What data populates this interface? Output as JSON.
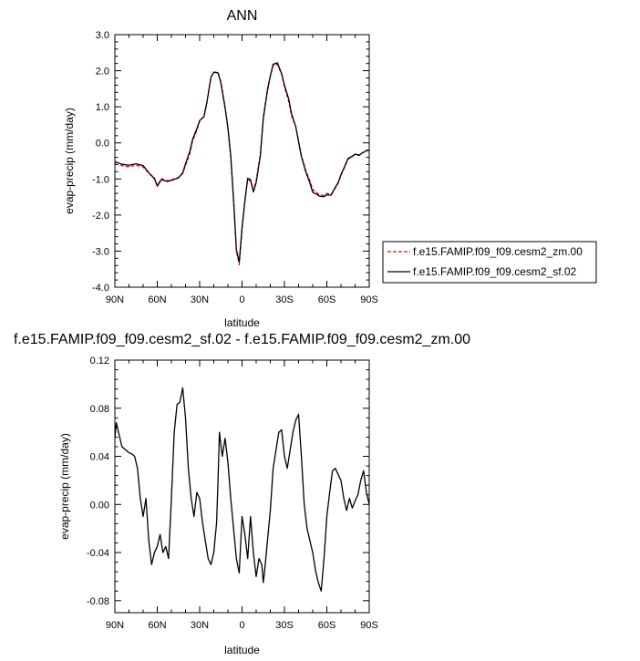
{
  "chart_data": [
    {
      "type": "line",
      "title": "ANN",
      "xlabel": "latitude",
      "ylabel": "evap-precip (mm/day)",
      "xlim": [
        90,
        -90
      ],
      "ylim": [
        -4.0,
        3.0
      ],
      "x_ticks": [
        90,
        60,
        30,
        0,
        -30,
        -60,
        -90
      ],
      "x_tick_labels": [
        "90N",
        "60N",
        "30N",
        "0",
        "30S",
        "60S",
        "90S"
      ],
      "y_ticks": [
        3.0,
        2.0,
        1.0,
        0.0,
        -1.0,
        -2.0,
        -3.0,
        -4.0
      ],
      "y_tick_labels": [
        "3.0",
        "2.0",
        "1.0",
        "0.0",
        "-1.0",
        "-2.0",
        "-3.0",
        "-4.0"
      ],
      "grid": false,
      "legend_position": "right",
      "series": [
        {
          "name": "f.e15.FAMIP.f09_f09.cesm2_zm.00",
          "color": "#ff0000",
          "dash": "dashed",
          "x": [
            90,
            85,
            80,
            75,
            70,
            65,
            62,
            60,
            57,
            53,
            50,
            45,
            42,
            40,
            37,
            35,
            32,
            30,
            27,
            25,
            22,
            20,
            17,
            15,
            12,
            10,
            8,
            6,
            4,
            2,
            0,
            -2,
            -4,
            -6,
            -8,
            -10,
            -13,
            -15,
            -18,
            -20,
            -22,
            -25,
            -28,
            -30,
            -33,
            -35,
            -38,
            -40,
            -42,
            -45,
            -48,
            -50,
            -53,
            -55,
            -58,
            -60,
            -63,
            -65,
            -68,
            -70,
            -72,
            -75,
            -78,
            -80,
            -83,
            -85,
            -88,
            -90
          ],
          "y": [
            -0.58,
            -0.63,
            -0.66,
            -0.62,
            -0.67,
            -0.88,
            -0.97,
            -1.18,
            -0.99,
            -1.05,
            -1.02,
            -0.96,
            -0.85,
            -0.62,
            -0.3,
            0.05,
            0.35,
            0.6,
            0.72,
            1.1,
            1.82,
            1.96,
            1.95,
            1.7,
            1.0,
            0.4,
            -0.4,
            -1.6,
            -3.0,
            -3.38,
            -2.4,
            -1.6,
            -1.02,
            -1.06,
            -1.32,
            -1.05,
            -0.3,
            0.7,
            1.5,
            1.85,
            2.15,
            2.18,
            1.9,
            1.55,
            1.15,
            0.75,
            0.45,
            0.05,
            -0.35,
            -0.75,
            -1.05,
            -1.3,
            -1.38,
            -1.45,
            -1.45,
            -1.4,
            -1.42,
            -1.32,
            -1.12,
            -0.9,
            -0.72,
            -0.45,
            -0.38,
            -0.32,
            -0.35,
            -0.28,
            -0.22,
            -0.2
          ]
        },
        {
          "name": "f.e15.FAMIP.f09_f09.cesm2_sf.02",
          "color": "#000000",
          "dash": "solid",
          "x": [
            90,
            85,
            80,
            75,
            70,
            65,
            62,
            60,
            57,
            53,
            50,
            45,
            42,
            40,
            37,
            35,
            32,
            30,
            27,
            25,
            22,
            20,
            17,
            15,
            12,
            10,
            8,
            6,
            4,
            2,
            0,
            -2,
            -4,
            -6,
            -8,
            -10,
            -13,
            -15,
            -18,
            -20,
            -22,
            -25,
            -28,
            -30,
            -33,
            -35,
            -38,
            -40,
            -42,
            -45,
            -48,
            -50,
            -53,
            -55,
            -58,
            -60,
            -63,
            -65,
            -68,
            -70,
            -72,
            -75,
            -78,
            -80,
            -83,
            -85,
            -88,
            -90
          ],
          "y": [
            -0.52,
            -0.59,
            -0.62,
            -0.58,
            -0.63,
            -0.87,
            -0.99,
            -1.2,
            -1.02,
            -1.07,
            -1.04,
            -0.97,
            -0.83,
            -0.58,
            -0.24,
            0.1,
            0.39,
            0.62,
            0.73,
            1.1,
            1.82,
            1.96,
            1.94,
            1.67,
            0.97,
            0.42,
            -0.35,
            -1.58,
            -2.96,
            -3.3,
            -2.35,
            -1.61,
            -0.98,
            -1.02,
            -1.36,
            -1.1,
            -0.34,
            0.66,
            1.46,
            1.85,
            2.18,
            2.22,
            1.92,
            1.6,
            1.22,
            0.81,
            0.45,
            0.03,
            -0.38,
            -0.79,
            -1.11,
            -1.37,
            -1.43,
            -1.48,
            -1.49,
            -1.44,
            -1.45,
            -1.3,
            -1.1,
            -0.88,
            -0.71,
            -0.43,
            -0.37,
            -0.31,
            -0.34,
            -0.28,
            -0.22,
            -0.2
          ]
        }
      ]
    },
    {
      "type": "line",
      "title": "f.e15.FAMIP.f09_f09.cesm2_sf.02 - f.e15.FAMIP.f09_f09.cesm2_zm.00",
      "xlabel": "latitude",
      "ylabel": "evap-precip (mm/day)",
      "xlim": [
        90,
        -90
      ],
      "ylim": [
        -0.09,
        0.12
      ],
      "x_ticks": [
        90,
        60,
        30,
        0,
        -30,
        -60,
        -90
      ],
      "x_tick_labels": [
        "90N",
        "60N",
        "30N",
        "0",
        "30S",
        "60S",
        "90S"
      ],
      "y_ticks": [
        0.12,
        0.08,
        0.04,
        0.0,
        -0.04,
        -0.08
      ],
      "y_tick_labels": [
        "0.12",
        "0.08",
        "0.04",
        "0.00",
        "-0.04",
        "-0.08"
      ],
      "grid": false,
      "series": [
        {
          "color": "#000000",
          "dash": "solid",
          "x": [
            90,
            89,
            87,
            85,
            82,
            80,
            78,
            76,
            74,
            72,
            70,
            68,
            66,
            64,
            62,
            60,
            58,
            56,
            54,
            52,
            50,
            48,
            46,
            44,
            42,
            40,
            38,
            36,
            34,
            32,
            30,
            28,
            26,
            24,
            22,
            20,
            18,
            17,
            16,
            14,
            12,
            10,
            8,
            6,
            4,
            2,
            0,
            -2,
            -4,
            -6,
            -8,
            -10,
            -12,
            -14,
            -15,
            -16,
            -18,
            -20,
            -22,
            -24,
            -26,
            -28,
            -30,
            -32,
            -34,
            -36,
            -38,
            -40,
            -42,
            -44,
            -46,
            -48,
            -50,
            -52,
            -54,
            -56,
            -58,
            -60,
            -62,
            -64,
            -66,
            -68,
            -70,
            -72,
            -74,
            -76,
            -78,
            -80,
            -82,
            -84,
            -86,
            -88,
            -90
          ],
          "y": [
            0.055,
            0.068,
            0.058,
            0.048,
            0.045,
            0.043,
            0.042,
            0.04,
            0.03,
            0.005,
            -0.01,
            0.005,
            -0.03,
            -0.05,
            -0.04,
            -0.035,
            -0.025,
            -0.04,
            -0.035,
            -0.045,
            0.005,
            0.06,
            0.083,
            0.085,
            0.097,
            0.072,
            0.03,
            0.005,
            -0.01,
            0.01,
            0.005,
            -0.015,
            -0.03,
            -0.045,
            -0.05,
            -0.04,
            -0.015,
            0.02,
            0.06,
            0.04,
            0.055,
            0.035,
            0.005,
            -0.02,
            -0.045,
            -0.057,
            -0.01,
            -0.025,
            -0.045,
            -0.01,
            -0.04,
            -0.06,
            -0.045,
            -0.05,
            -0.065,
            -0.055,
            -0.03,
            -0.005,
            0.03,
            0.045,
            0.06,
            0.062,
            0.04,
            0.03,
            0.045,
            0.06,
            0.07,
            0.075,
            0.04,
            0.0,
            -0.02,
            -0.03,
            -0.04,
            -0.055,
            -0.065,
            -0.072,
            -0.045,
            -0.01,
            0.01,
            0.028,
            0.03,
            0.025,
            0.02,
            0.005,
            -0.005,
            0.005,
            -0.003,
            0.003,
            0.008,
            0.02,
            0.028,
            0.01,
            0.0
          ]
        }
      ]
    }
  ]
}
